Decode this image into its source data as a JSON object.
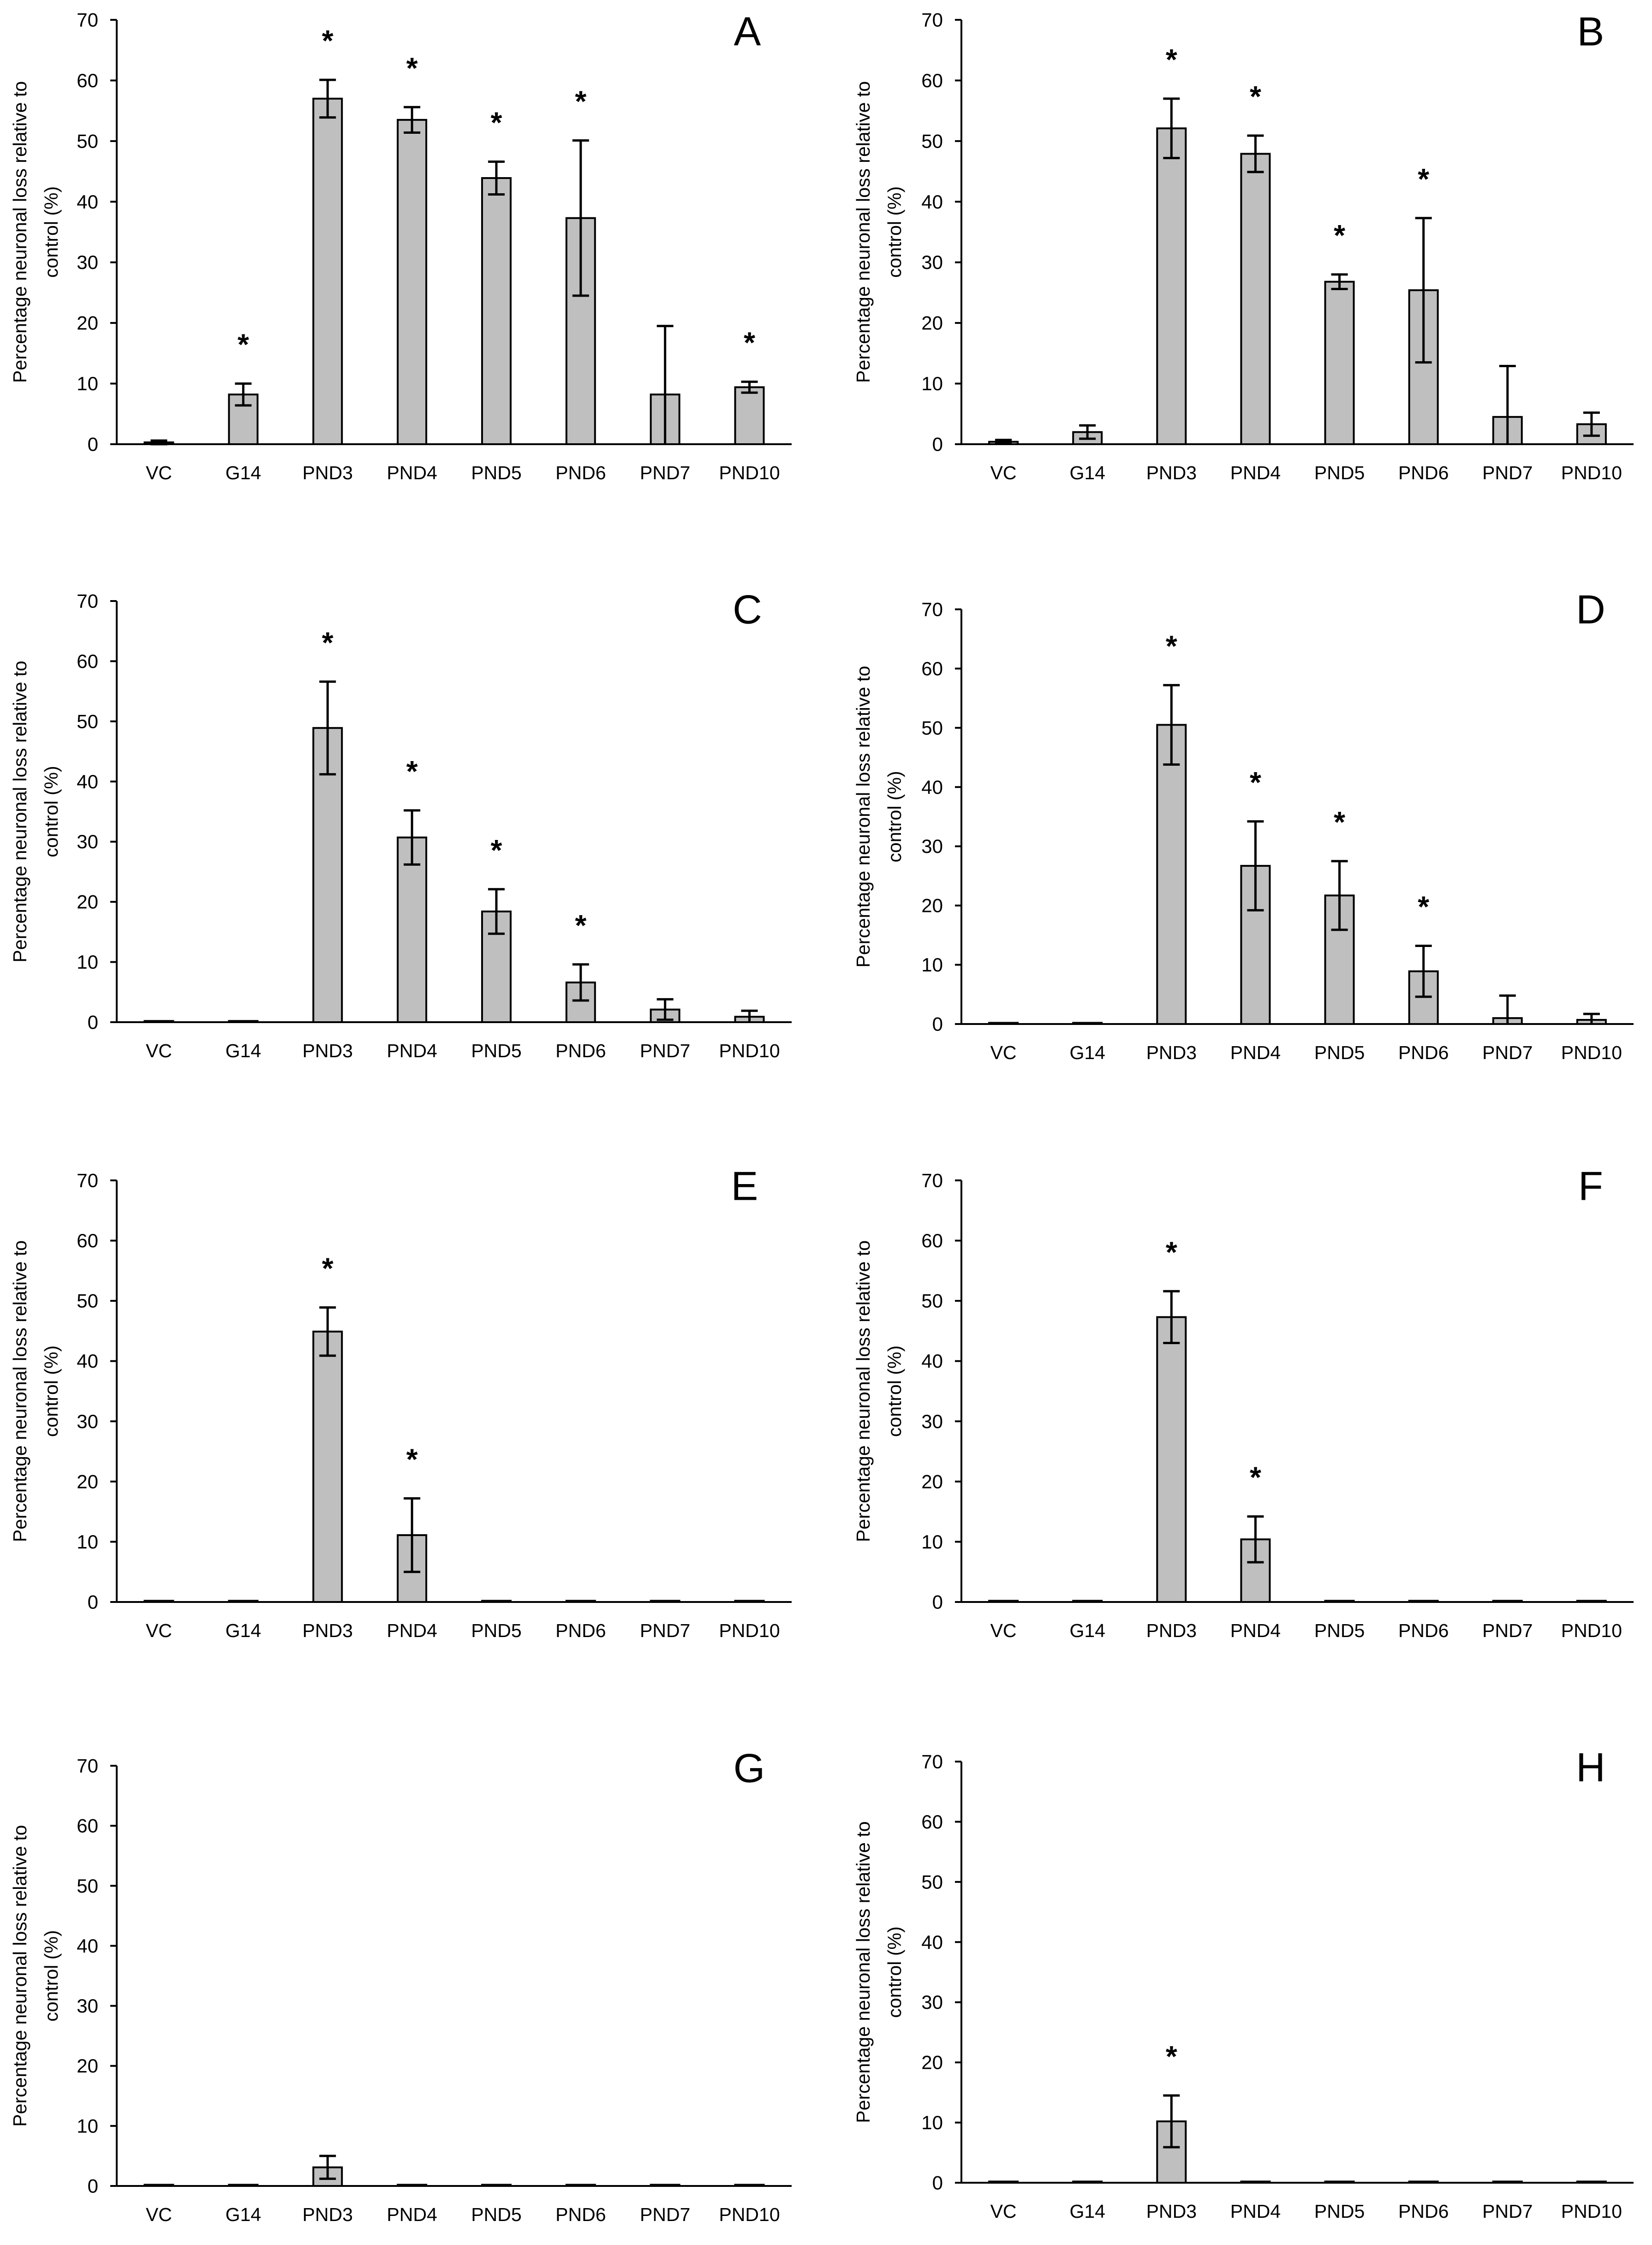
{
  "colors": {
    "bar_fill": "#bfbfbf",
    "bar_stroke": "#000000",
    "axis": "#000000",
    "text": "#000000"
  },
  "sig_marker": "*",
  "chart_data": [
    {
      "panel": "A",
      "type": "bar",
      "categories": [
        "VC",
        "G14",
        "PND3",
        "PND4",
        "PND5",
        "PND6",
        "PND7",
        "PND10"
      ],
      "values": [
        0.3,
        8.2,
        57.0,
        53.5,
        43.9,
        37.3,
        8.2,
        9.4
      ],
      "errors": [
        0.3,
        1.8,
        3.1,
        2.1,
        2.7,
        12.8,
        11.3,
        0.9
      ],
      "significant": [
        false,
        true,
        true,
        true,
        true,
        true,
        false,
        true
      ],
      "ylabel_lines": [
        "Percentage neuronal loss relative to",
        "control (%)"
      ],
      "ylim": [
        0,
        70
      ],
      "yticks": [
        0,
        10,
        20,
        30,
        40,
        50,
        60,
        70
      ]
    },
    {
      "panel": "B",
      "type": "bar",
      "categories": [
        "VC",
        "G14",
        "PND3",
        "PND4",
        "PND5",
        "PND6",
        "PND7",
        "PND10"
      ],
      "values": [
        0.4,
        2.0,
        52.1,
        47.9,
        26.8,
        25.4,
        4.5,
        3.3
      ],
      "errors": [
        0.3,
        1.1,
        4.9,
        3.0,
        1.2,
        11.9,
        8.4,
        1.9
      ],
      "significant": [
        false,
        false,
        true,
        true,
        true,
        true,
        false,
        false
      ],
      "ylabel_lines": [
        "Percentage neuronal loss relative to",
        "control (%)"
      ],
      "ylim": [
        0,
        70
      ],
      "yticks": [
        0,
        10,
        20,
        30,
        40,
        50,
        60,
        70
      ]
    },
    {
      "panel": "C",
      "type": "bar",
      "categories": [
        "VC",
        "G14",
        "PND3",
        "PND4",
        "PND5",
        "PND6",
        "PND7",
        "PND10"
      ],
      "values": [
        0.2,
        0.2,
        48.9,
        30.7,
        18.4,
        6.6,
        2.1,
        0.9
      ],
      "errors": [
        0,
        0,
        7.7,
        4.5,
        3.7,
        3.0,
        1.7,
        1.0
      ],
      "significant": [
        false,
        false,
        true,
        true,
        true,
        true,
        false,
        false
      ],
      "ylabel_lines": [
        "Percentage neuronal loss relative to",
        "control (%)"
      ],
      "ylim": [
        0,
        70
      ],
      "yticks": [
        0,
        10,
        20,
        30,
        40,
        50,
        60,
        70
      ]
    },
    {
      "panel": "D",
      "type": "bar",
      "categories": [
        "VC",
        "G14",
        "PND3",
        "PND4",
        "PND5",
        "PND6",
        "PND7",
        "PND10"
      ],
      "values": [
        0.2,
        0.2,
        50.5,
        26.7,
        21.7,
        8.9,
        1.0,
        0.7
      ],
      "errors": [
        0,
        0,
        6.7,
        7.5,
        5.8,
        4.3,
        3.8,
        1.0
      ],
      "significant": [
        false,
        false,
        true,
        true,
        true,
        true,
        false,
        false
      ],
      "ylabel_lines": [
        "Percentage neuronal loss relative to",
        "control (%)"
      ],
      "ylim": [
        0,
        70
      ],
      "yticks": [
        0,
        10,
        20,
        30,
        40,
        50,
        60,
        70
      ]
    },
    {
      "panel": "E",
      "type": "bar",
      "categories": [
        "VC",
        "G14",
        "PND3",
        "PND4",
        "PND5",
        "PND6",
        "PND7",
        "PND10"
      ],
      "values": [
        0.2,
        0.2,
        44.9,
        11.1,
        0.2,
        0.2,
        0.2,
        0.2
      ],
      "errors": [
        0,
        0,
        4.0,
        6.1,
        0,
        0,
        0,
        0
      ],
      "significant": [
        false,
        false,
        true,
        true,
        false,
        false,
        false,
        false
      ],
      "ylabel_lines": [
        "Percentage neuronal loss relative to",
        "control (%)"
      ],
      "ylim": [
        0,
        70
      ],
      "yticks": [
        0,
        10,
        20,
        30,
        40,
        50,
        60,
        70
      ]
    },
    {
      "panel": "F",
      "type": "bar",
      "categories": [
        "VC",
        "G14",
        "PND3",
        "PND4",
        "PND5",
        "PND6",
        "PND7",
        "PND10"
      ],
      "values": [
        0.2,
        0.2,
        47.3,
        10.4,
        0.2,
        0.2,
        0.2,
        0.2
      ],
      "errors": [
        0,
        0,
        4.3,
        3.8,
        0,
        0,
        0,
        0
      ],
      "significant": [
        false,
        false,
        true,
        true,
        false,
        false,
        false,
        false
      ],
      "ylabel_lines": [
        "Percentage neuronal loss relative to",
        "control (%)"
      ],
      "ylim": [
        0,
        70
      ],
      "yticks": [
        0,
        10,
        20,
        30,
        40,
        50,
        60,
        70
      ]
    },
    {
      "panel": "G",
      "type": "bar",
      "categories": [
        "VC",
        "G14",
        "PND3",
        "PND4",
        "PND5",
        "PND6",
        "PND7",
        "PND10"
      ],
      "values": [
        0.2,
        0.2,
        3.1,
        0.2,
        0.2,
        0.2,
        0.2,
        0.2
      ],
      "errors": [
        0,
        0,
        1.9,
        0,
        0,
        0,
        0,
        0
      ],
      "significant": [
        false,
        false,
        false,
        false,
        false,
        false,
        false,
        false
      ],
      "ylabel_lines": [
        "Percentage neuronal loss relative to",
        "control (%)"
      ],
      "ylim": [
        0,
        70
      ],
      "yticks": [
        0,
        10,
        20,
        30,
        40,
        50,
        60,
        70
      ]
    },
    {
      "panel": "H",
      "type": "bar",
      "categories": [
        "VC",
        "G14",
        "PND3",
        "PND4",
        "PND5",
        "PND6",
        "PND7",
        "PND10"
      ],
      "values": [
        0.2,
        0.2,
        10.2,
        0.2,
        0.2,
        0.2,
        0.2,
        0.2
      ],
      "errors": [
        0,
        0,
        4.3,
        0,
        0,
        0,
        0,
        0
      ],
      "significant": [
        false,
        false,
        true,
        false,
        false,
        false,
        false,
        false
      ],
      "ylabel_lines": [
        "Percentage neuronal loss relative to",
        "control (%)"
      ],
      "ylim": [
        0,
        70
      ],
      "yticks": [
        0,
        10,
        20,
        30,
        40,
        50,
        60,
        70
      ]
    }
  ]
}
